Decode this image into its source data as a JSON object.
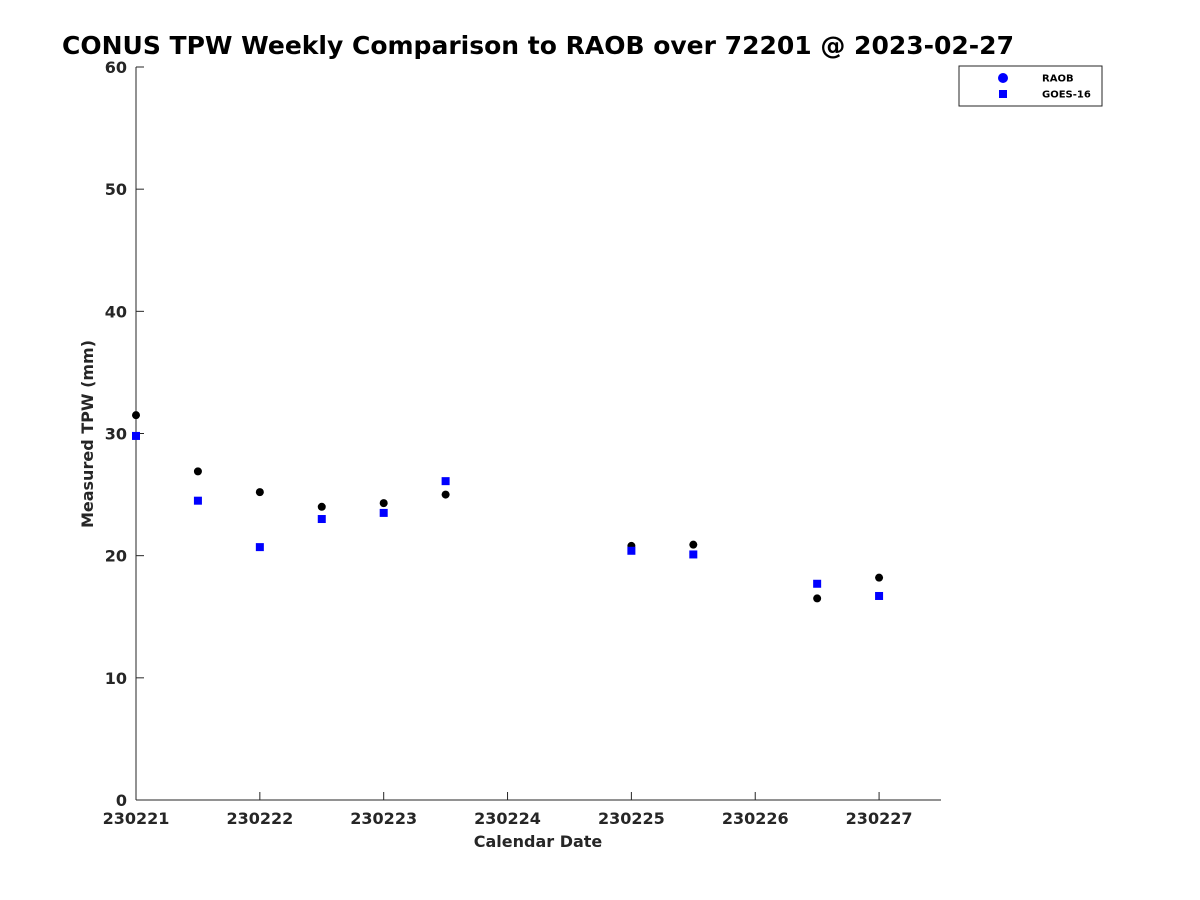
{
  "chart_data": {
    "type": "scatter",
    "title": "CONUS TPW Weekly Comparison to RAOB over 72201 @ 2023-02-27",
    "xlabel": "Calendar Date",
    "ylabel": "Measured TPW (mm)",
    "xlim": [
      "2023-02-21",
      "2023-02-27T12:00"
    ],
    "ylim": [
      0,
      60
    ],
    "x_ticks": [
      {
        "label": "230221",
        "date": "2023-02-21"
      },
      {
        "label": "230222",
        "date": "2023-02-22"
      },
      {
        "label": "230223",
        "date": "2023-02-23"
      },
      {
        "label": "230224",
        "date": "2023-02-24"
      },
      {
        "label": "230225",
        "date": "2023-02-25"
      },
      {
        "label": "230226",
        "date": "2023-02-26"
      },
      {
        "label": "230227",
        "date": "2023-02-27"
      }
    ],
    "y_ticks": [
      0,
      10,
      20,
      30,
      40,
      50,
      60
    ],
    "grid": false,
    "legend_position": "top-right",
    "series": [
      {
        "name": "RAOB",
        "marker": "circle",
        "color": "#000000",
        "legend_color": "#0000ff",
        "x": [
          "2023-02-21T00:00",
          "2023-02-21T12:00",
          "2023-02-22T00:00",
          "2023-02-22T12:00",
          "2023-02-23T00:00",
          "2023-02-23T12:00",
          "2023-02-25T00:00",
          "2023-02-25T12:00",
          "2023-02-26T12:00",
          "2023-02-27T00:00"
        ],
        "y": [
          31.5,
          26.9,
          25.2,
          24.0,
          24.3,
          25.0,
          20.8,
          20.9,
          16.5,
          18.2
        ]
      },
      {
        "name": "GOES-16",
        "marker": "square",
        "color": "#0000ff",
        "legend_color": "#0000ff",
        "x": [
          "2023-02-21T00:00",
          "2023-02-21T12:00",
          "2023-02-22T00:00",
          "2023-02-22T12:00",
          "2023-02-23T00:00",
          "2023-02-23T12:00",
          "2023-02-25T00:00",
          "2023-02-25T12:00",
          "2023-02-26T12:00",
          "2023-02-27T00:00"
        ],
        "y": [
          29.8,
          24.5,
          20.7,
          23.0,
          23.5,
          26.1,
          20.4,
          20.1,
          17.7,
          16.7
        ]
      }
    ]
  }
}
